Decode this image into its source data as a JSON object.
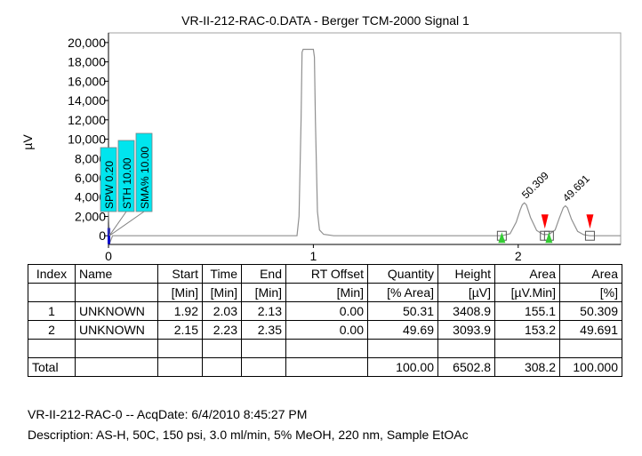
{
  "chart_data": {
    "type": "line",
    "title": "VR-II-212-RAC-0.DATA - Berger TCM-2000 Signal 1",
    "ylabel": "µV",
    "xlabel": "",
    "xlim": [
      0,
      2.5
    ],
    "ylim": [
      -900,
      21000
    ],
    "y_ticks": [
      0,
      2000,
      4000,
      6000,
      8000,
      10000,
      12000,
      14000,
      16000,
      18000,
      20000
    ],
    "y_tick_labels": [
      "0",
      "2,000",
      "4,000",
      "6,000",
      "8,000",
      "10,000",
      "12,000",
      "14,000",
      "16,000",
      "18,000",
      "20,000"
    ],
    "x_ticks": [
      0,
      1,
      2
    ],
    "x_tick_labels": [
      "0",
      "1",
      "2"
    ],
    "grid": false,
    "series": [
      {
        "x": [
          0.0,
          0.005,
          0.02,
          0.2,
          0.92,
          0.93,
          0.94,
          0.945,
          0.95,
          1.0,
          1.005,
          1.01,
          1.02,
          1.03,
          1.05,
          1.1,
          1.5,
          1.9,
          1.92,
          1.96,
          1.99,
          2.01,
          2.02,
          2.03,
          2.04,
          2.06,
          2.09,
          2.12,
          2.13,
          2.15,
          2.18,
          2.2,
          2.22,
          2.23,
          2.24,
          2.26,
          2.29,
          2.32,
          2.35,
          2.5
        ],
        "y": [
          0,
          -800,
          0,
          0,
          0,
          2000,
          12000,
          19000,
          19300,
          19300,
          18500,
          12000,
          2500,
          600,
          150,
          0,
          0,
          0,
          0,
          200,
          1400,
          2700,
          3200,
          3408.9,
          3200,
          1900,
          550,
          150,
          120,
          150,
          600,
          1800,
          2900,
          3093.9,
          2900,
          1700,
          450,
          100,
          0,
          0
        ]
      }
    ],
    "peak_labels": [
      {
        "x": 2.03,
        "y": 3408.9,
        "text": "50.309"
      },
      {
        "x": 2.23,
        "y": 3093.9,
        "text": "49.691"
      }
    ],
    "start_markers": [
      1.92,
      2.15
    ],
    "end_markers": [
      2.13,
      2.35
    ],
    "baseline_boxes": [
      1.92,
      2.13,
      2.15,
      2.35
    ],
    "method_flags": [
      "SPW 0.20",
      "STH 10.00",
      "SMA% 10.00"
    ],
    "colors": {
      "trace": "#909090",
      "flag": "#00e5ee",
      "start_marker": "#33cc33",
      "end_marker": "#ff0000",
      "event_bar": "#0000cc"
    }
  },
  "table": {
    "headers": [
      "Index",
      "Name",
      "Start",
      "Time",
      "End",
      "RT Offset",
      "Quantity",
      "Height",
      "Area",
      "Area"
    ],
    "units": [
      "",
      "",
      "[Min]",
      "[Min]",
      "[Min]",
      "[Min]",
      "[% Area]",
      "[µV]",
      "[µV.Min]",
      "[%]"
    ],
    "rows": [
      [
        "1",
        "UNKNOWN",
        "1.92",
        "2.03",
        "2.13",
        "0.00",
        "50.31",
        "3408.9",
        "155.1",
        "50.309"
      ],
      [
        "2",
        "UNKNOWN",
        "2.15",
        "2.23",
        "2.35",
        "0.00",
        "49.69",
        "3093.9",
        "153.2",
        "49.691"
      ],
      [
        "",
        "",
        "",
        "",
        "",
        "",
        "",
        "",
        "",
        ""
      ],
      [
        "Total",
        "",
        "",
        "",
        "",
        "",
        "100.00",
        "6502.8",
        "308.2",
        "100.000"
      ]
    ]
  },
  "footer": {
    "line1": "VR-II-212-RAC-0 -- AcqDate: 6/4/2010 8:45:27 PM",
    "line2": "Description: AS-H, 50C, 150 psi, 3.0 ml/min, 5% MeOH, 220 nm, Sample EtOAc"
  }
}
